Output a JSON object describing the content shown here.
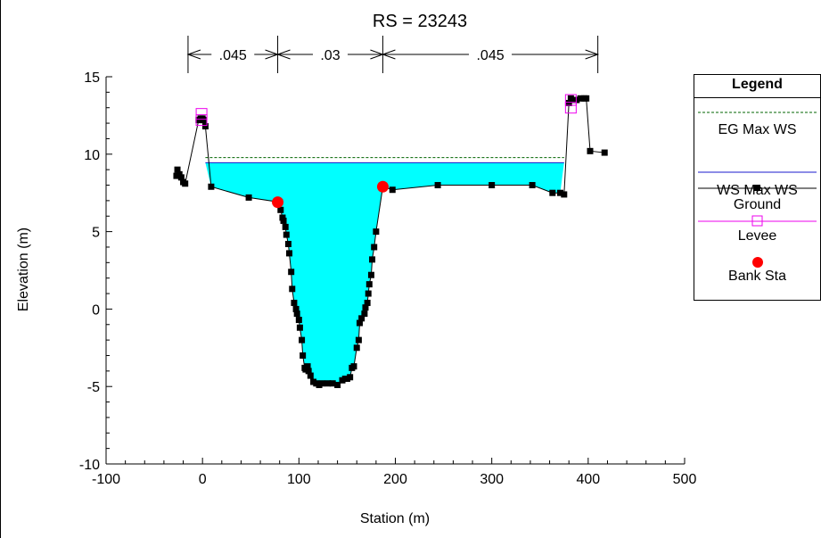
{
  "chart_data": {
    "type": "line",
    "title": "RS = 23243",
    "xlabel": "Station (m)",
    "ylabel": "Elevation (m)",
    "xlim": [
      -100,
      500
    ],
    "ylim": [
      -10,
      15
    ],
    "x_ticks": [
      "-100",
      "0",
      "100",
      "200",
      "300",
      "400",
      "500"
    ],
    "y_ticks": [
      "-10",
      "-5",
      "0",
      "5",
      "10",
      "15"
    ],
    "manning_n": {
      "boundaries": [
        -15,
        78,
        187,
        410
      ],
      "values": [
        ".045",
        ".03",
        ".045"
      ]
    },
    "series": [
      {
        "name": "EG Max WS",
        "style": "dashed",
        "color": "#006400",
        "x": [
          3,
          375
        ],
        "y": [
          9.78,
          9.78
        ]
      },
      {
        "name": "WS Max WS",
        "style": "solid",
        "fill": "#00ffff",
        "color": "#1a1acc",
        "x": [
          3,
          375
        ],
        "y": [
          9.45,
          9.45
        ]
      },
      {
        "name": "Ground",
        "style": "line-markers",
        "color": "#000000",
        "x": [
          -27,
          -26,
          -24,
          -22,
          -20,
          -18,
          -4,
          -2,
          0,
          1,
          3,
          9,
          48,
          80,
          81,
          83,
          84,
          86,
          87,
          89,
          90,
          92,
          93,
          95,
          97,
          98,
          100,
          101,
          103,
          104,
          106,
          107,
          109,
          110,
          112,
          115,
          118,
          121,
          124,
          130,
          135,
          140,
          145,
          148,
          150,
          153,
          155,
          157,
          160,
          162,
          163,
          165,
          168,
          169,
          171,
          172,
          173,
          175,
          176,
          178,
          180,
          187,
          197,
          244,
          300,
          342,
          363,
          371,
          375,
          380,
          382,
          386,
          388,
          392,
          396,
          398,
          402,
          417
        ],
        "y": [
          8.6,
          9.0,
          8.7,
          8.5,
          8.2,
          8.1,
          12.2,
          12.3,
          12.3,
          12.2,
          11.8,
          7.9,
          7.2,
          6.9,
          6.4,
          5.9,
          5.7,
          5.3,
          4.8,
          4.2,
          3.6,
          2.4,
          1.3,
          0.4,
          0.0,
          -0.3,
          -0.7,
          -1.2,
          -2.0,
          -3.0,
          -3.8,
          -3.9,
          -3.7,
          -4.0,
          -4.3,
          -4.7,
          -4.8,
          -4.9,
          -4.8,
          -4.8,
          -4.8,
          -4.9,
          -4.6,
          -4.5,
          -4.5,
          -4.4,
          -3.8,
          -3.7,
          -2.5,
          -2.0,
          -0.9,
          -0.6,
          -0.3,
          0.1,
          0.4,
          1.0,
          1.6,
          2.2,
          3.2,
          4.0,
          5.0,
          7.9,
          7.7,
          8.0,
          8.0,
          8.0,
          7.5,
          7.5,
          7.4,
          13.3,
          13.6,
          13.5,
          13.5,
          13.6,
          13.6,
          13.6,
          10.2,
          10.1
        ]
      },
      {
        "name": "Levee",
        "style": "markers",
        "color": "#ee00ee",
        "x": [
          -1,
          -1,
          382,
          382
        ],
        "y": [
          12.6,
          12.2,
          13.5,
          13.0
        ]
      },
      {
        "name": "Bank Sta",
        "style": "markers",
        "color": "#ff0000",
        "x": [
          78,
          187
        ],
        "y": [
          6.9,
          7.9
        ]
      }
    ]
  },
  "legend": {
    "title": "Legend",
    "items": [
      "EG Max WS",
      "WS Max WS",
      "Ground",
      "Levee",
      "Bank Sta"
    ]
  }
}
